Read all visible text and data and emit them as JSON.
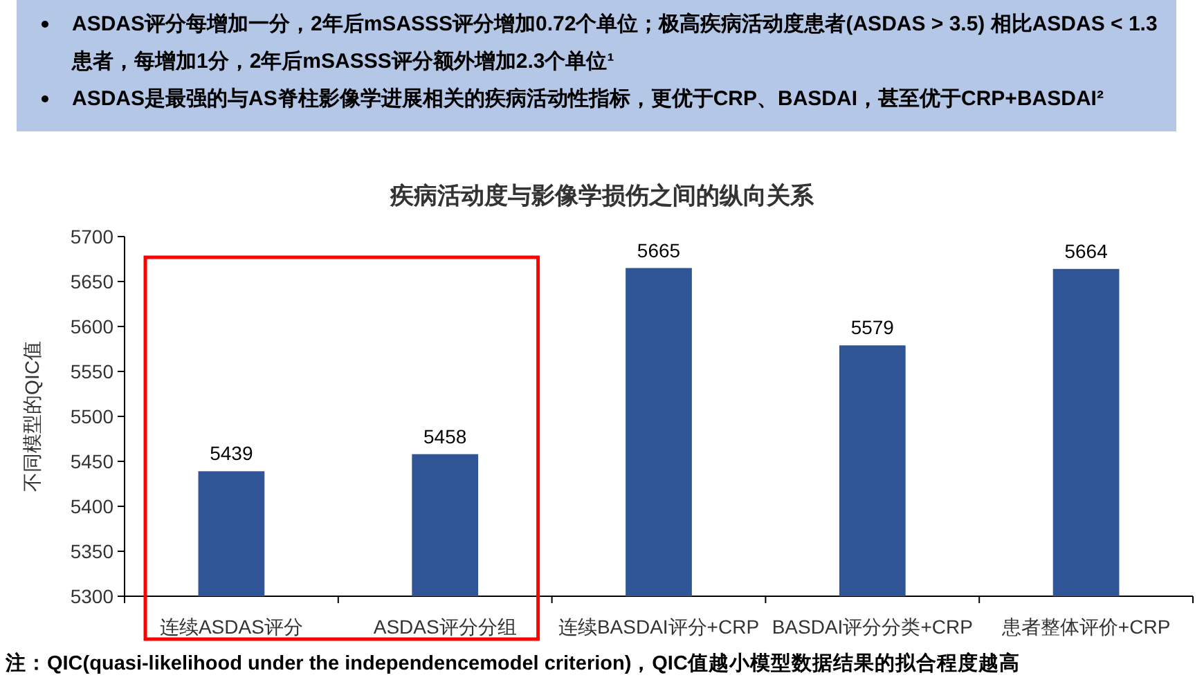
{
  "chart_data": {
    "type": "bar",
    "title": "疾病活动度与影像学损伤之间的纵向关系",
    "ylabel": "不同模型的QIC值",
    "categories": [
      "连续ASDAS评分",
      "ASDAS评分分组",
      "连续BASDAI评分+CRP",
      "BASDAI评分分类+CRP",
      "患者整体评价+CRP"
    ],
    "values": [
      5439,
      5458,
      5665,
      5579,
      5664
    ],
    "color": "#2f5597",
    "ylim": [
      5300,
      5700
    ],
    "yticks": [
      5300,
      5350,
      5400,
      5450,
      5500,
      5550,
      5600,
      5650,
      5700
    ],
    "data_labels": true,
    "annotations": [
      "ASDAS评分每增加一分，2年后mSASSS评分增加0.72个单位；极高疾病活动度患者(ASDAS > 3.5)  相比ASDAS < 1.3患者，每增加1分，2年后mSASSS评分额外增加2.3个单位¹",
      "ASDAS是最强的与AS脊柱影像学进展相关的疾病活动性指标，更优于CRP、BASDAI，甚至优于CRP+BASDAI²",
      "注：QIC(quasi-likelihood under the independencemodel criterion)，QIC值越小模型数据结果的拟合程度越高"
    ]
  }
}
